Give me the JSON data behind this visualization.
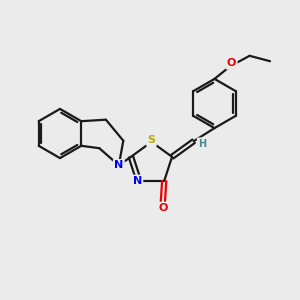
{
  "background_color": "#ebebeb",
  "bond_color": "#1a1a1a",
  "atom_colors": {
    "N": "#0000ee",
    "O": "#ee0000",
    "S": "#bbaa00",
    "H": "#448888"
  },
  "figsize": [
    3.0,
    3.0
  ],
  "dpi": 100,
  "lw": 1.6
}
